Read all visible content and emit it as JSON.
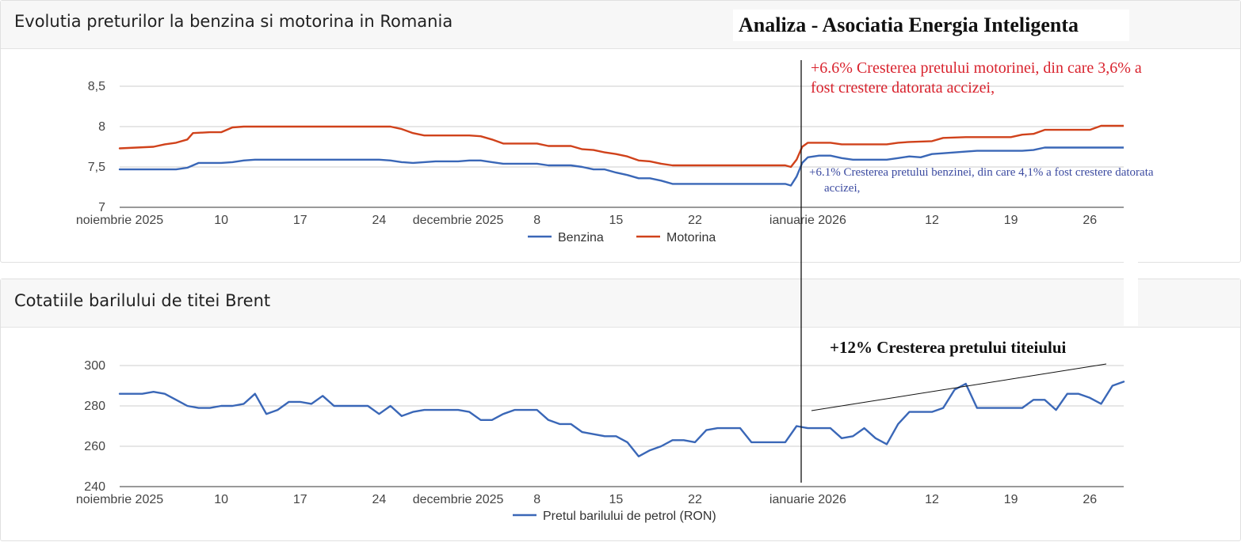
{
  "overlay": {
    "title": "Analiza - Asociatia Energia Inteligenta",
    "motorina_note_line1": "+6.6% Cresterea pretului motorinei, din care 3,6% a",
    "motorina_note_line2": "fost crestere datorata accizei,",
    "benzina_note_line1": "+6.1% Cresterea pretului benzinei, din care 4,1% a fost crestere datorata",
    "benzina_note_line2": "accizei,",
    "brent_note": "+12% Cresterea pretului titeiului",
    "colors": {
      "motorina_note": "#d9232e",
      "benzina_note": "#3b4aa0",
      "brent_note": "#111111",
      "marker_line": "#111111"
    }
  },
  "chart_data": [
    {
      "type": "line",
      "title": "Evolutia preturilor la benzina si motorina in Romania",
      "xlabel": "",
      "ylabel": "",
      "ylim": [
        7,
        8.5
      ],
      "yticks": [
        "7",
        "7,5",
        "8",
        "8,5"
      ],
      "ytick_values": [
        7,
        7.5,
        8,
        8.5
      ],
      "xlim": [
        0,
        89
      ],
      "xtick_labels": [
        "noiembrie 2025",
        "10",
        "17",
        "24",
        "decembrie 2025",
        "8",
        "15",
        "22",
        "ianuarie 2026",
        "12",
        "19",
        "26"
      ],
      "xtick_positions": [
        0,
        9,
        16,
        23,
        30,
        37,
        44,
        51,
        61,
        72,
        79,
        86
      ],
      "legend": "bottom",
      "grid": true,
      "series": [
        {
          "name": "Benzina",
          "color": "#3a67b7",
          "points": [
            [
              0,
              7.47
            ],
            [
              5,
              7.47
            ],
            [
              6,
              7.49
            ],
            [
              7,
              7.55
            ],
            [
              9,
              7.55
            ],
            [
              10,
              7.56
            ],
            [
              11,
              7.58
            ],
            [
              12,
              7.59
            ],
            [
              14,
              7.59
            ],
            [
              20,
              7.59
            ],
            [
              23,
              7.59
            ],
            [
              24,
              7.58
            ],
            [
              25,
              7.56
            ],
            [
              26,
              7.55
            ],
            [
              27,
              7.56
            ],
            [
              28,
              7.57
            ],
            [
              30,
              7.57
            ],
            [
              31,
              7.58
            ],
            [
              32,
              7.58
            ],
            [
              33,
              7.56
            ],
            [
              34,
              7.54
            ],
            [
              37,
              7.54
            ],
            [
              38,
              7.52
            ],
            [
              40,
              7.52
            ],
            [
              41,
              7.5
            ],
            [
              42,
              7.47
            ],
            [
              43,
              7.47
            ],
            [
              44,
              7.43
            ],
            [
              45,
              7.4
            ],
            [
              46,
              7.36
            ],
            [
              47,
              7.36
            ],
            [
              48,
              7.33
            ],
            [
              49,
              7.29
            ],
            [
              59,
              7.29
            ],
            [
              59.5,
              7.27
            ],
            [
              60,
              7.38
            ],
            [
              60.5,
              7.55
            ],
            [
              61,
              7.62
            ],
            [
              62,
              7.64
            ],
            [
              63,
              7.64
            ],
            [
              64,
              7.61
            ],
            [
              65,
              7.59
            ],
            [
              68,
              7.59
            ],
            [
              69,
              7.61
            ],
            [
              70,
              7.63
            ],
            [
              71,
              7.62
            ],
            [
              72,
              7.66
            ],
            [
              73,
              7.67
            ],
            [
              75,
              7.69
            ],
            [
              76,
              7.7
            ],
            [
              80,
              7.7
            ],
            [
              81,
              7.71
            ],
            [
              82,
              7.74
            ],
            [
              89,
              7.74
            ]
          ]
        },
        {
          "name": "Motorina",
          "color": "#d0421b",
          "points": [
            [
              0,
              7.73
            ],
            [
              3,
              7.75
            ],
            [
              4,
              7.78
            ],
            [
              5,
              7.8
            ],
            [
              6,
              7.84
            ],
            [
              6.5,
              7.92
            ],
            [
              8,
              7.93
            ],
            [
              9,
              7.93
            ],
            [
              10,
              7.99
            ],
            [
              11,
              8.0
            ],
            [
              14,
              8.0
            ],
            [
              18,
              8.0
            ],
            [
              24,
              8.0
            ],
            [
              25,
              7.97
            ],
            [
              26,
              7.92
            ],
            [
              27,
              7.89
            ],
            [
              30,
              7.89
            ],
            [
              31,
              7.89
            ],
            [
              32,
              7.88
            ],
            [
              33,
              7.84
            ],
            [
              34,
              7.79
            ],
            [
              37,
              7.79
            ],
            [
              38,
              7.76
            ],
            [
              40,
              7.76
            ],
            [
              41,
              7.72
            ],
            [
              42,
              7.71
            ],
            [
              43,
              7.68
            ],
            [
              44,
              7.66
            ],
            [
              45,
              7.63
            ],
            [
              46,
              7.58
            ],
            [
              47,
              7.57
            ],
            [
              48,
              7.54
            ],
            [
              49,
              7.52
            ],
            [
              59,
              7.52
            ],
            [
              59.5,
              7.5
            ],
            [
              60,
              7.59
            ],
            [
              60.5,
              7.75
            ],
            [
              61,
              7.8
            ],
            [
              63,
              7.8
            ],
            [
              64,
              7.78
            ],
            [
              68,
              7.78
            ],
            [
              69,
              7.8
            ],
            [
              70,
              7.81
            ],
            [
              72,
              7.82
            ],
            [
              73,
              7.86
            ],
            [
              75,
              7.87
            ],
            [
              79,
              7.87
            ],
            [
              80,
              7.9
            ],
            [
              81,
              7.91
            ],
            [
              82,
              7.96
            ],
            [
              86,
              7.96
            ],
            [
              87,
              8.01
            ],
            [
              89,
              8.01
            ]
          ]
        }
      ]
    },
    {
      "type": "line",
      "title": "Cotatiile barilului de titei Brent",
      "xlabel": "",
      "ylabel": "",
      "ylim": [
        240,
        300
      ],
      "yticks": [
        "240",
        "260",
        "280",
        "300"
      ],
      "ytick_values": [
        240,
        260,
        280,
        300
      ],
      "xlim": [
        0,
        89
      ],
      "xtick_labels": [
        "noiembrie 2025",
        "10",
        "17",
        "24",
        "decembrie 2025",
        "8",
        "15",
        "22",
        "ianuarie 2026",
        "12",
        "19",
        "26"
      ],
      "xtick_positions": [
        0,
        9,
        16,
        23,
        30,
        37,
        44,
        51,
        61,
        72,
        79,
        86
      ],
      "legend": "bottom",
      "grid": true,
      "series": [
        {
          "name": "Pretul barilului de petrol (RON)",
          "color": "#3a67b7",
          "points": [
            [
              0,
              286
            ],
            [
              2,
              286
            ],
            [
              3,
              287
            ],
            [
              4,
              286
            ],
            [
              5,
              283
            ],
            [
              6,
              280
            ],
            [
              7,
              279
            ],
            [
              8,
              279
            ],
            [
              9,
              280
            ],
            [
              10,
              280
            ],
            [
              11,
              281
            ],
            [
              12,
              286
            ],
            [
              13,
              276
            ],
            [
              14,
              278
            ],
            [
              15,
              282
            ],
            [
              16,
              282
            ],
            [
              17,
              281
            ],
            [
              18,
              285
            ],
            [
              19,
              280
            ],
            [
              20,
              280
            ],
            [
              21,
              280
            ],
            [
              22,
              280
            ],
            [
              23,
              276
            ],
            [
              24,
              280
            ],
            [
              25,
              275
            ],
            [
              26,
              277
            ],
            [
              27,
              278
            ],
            [
              28,
              278
            ],
            [
              30,
              278
            ],
            [
              31,
              277
            ],
            [
              32,
              273
            ],
            [
              33,
              273
            ],
            [
              34,
              276
            ],
            [
              35,
              278
            ],
            [
              36,
              278
            ],
            [
              37,
              278
            ],
            [
              38,
              273
            ],
            [
              39,
              271
            ],
            [
              40,
              271
            ],
            [
              41,
              267
            ],
            [
              42,
              266
            ],
            [
              43,
              265
            ],
            [
              44,
              265
            ],
            [
              45,
              262
            ],
            [
              46,
              255
            ],
            [
              47,
              258
            ],
            [
              48,
              260
            ],
            [
              49,
              263
            ],
            [
              50,
              263
            ],
            [
              51,
              262
            ],
            [
              52,
              268
            ],
            [
              53,
              269
            ],
            [
              54,
              269
            ],
            [
              55,
              269
            ],
            [
              56,
              262
            ],
            [
              57,
              262
            ],
            [
              58,
              262
            ],
            [
              59,
              262
            ],
            [
              60,
              270
            ],
            [
              61,
              269
            ],
            [
              62,
              269
            ],
            [
              63,
              269
            ],
            [
              64,
              264
            ],
            [
              65,
              265
            ],
            [
              66,
              269
            ],
            [
              67,
              264
            ],
            [
              68,
              261
            ],
            [
              69,
              271
            ],
            [
              70,
              277
            ],
            [
              71,
              277
            ],
            [
              72,
              277
            ],
            [
              73,
              279
            ],
            [
              74,
              288
            ],
            [
              75,
              291
            ],
            [
              76,
              279
            ],
            [
              77,
              279
            ],
            [
              78,
              279
            ],
            [
              79,
              279
            ],
            [
              80,
              279
            ],
            [
              81,
              283
            ],
            [
              82,
              283
            ],
            [
              83,
              278
            ],
            [
              84,
              286
            ],
            [
              85,
              286
            ],
            [
              86,
              284
            ],
            [
              87,
              281
            ],
            [
              88,
              290
            ],
            [
              89,
              292
            ]
          ]
        }
      ]
    }
  ]
}
